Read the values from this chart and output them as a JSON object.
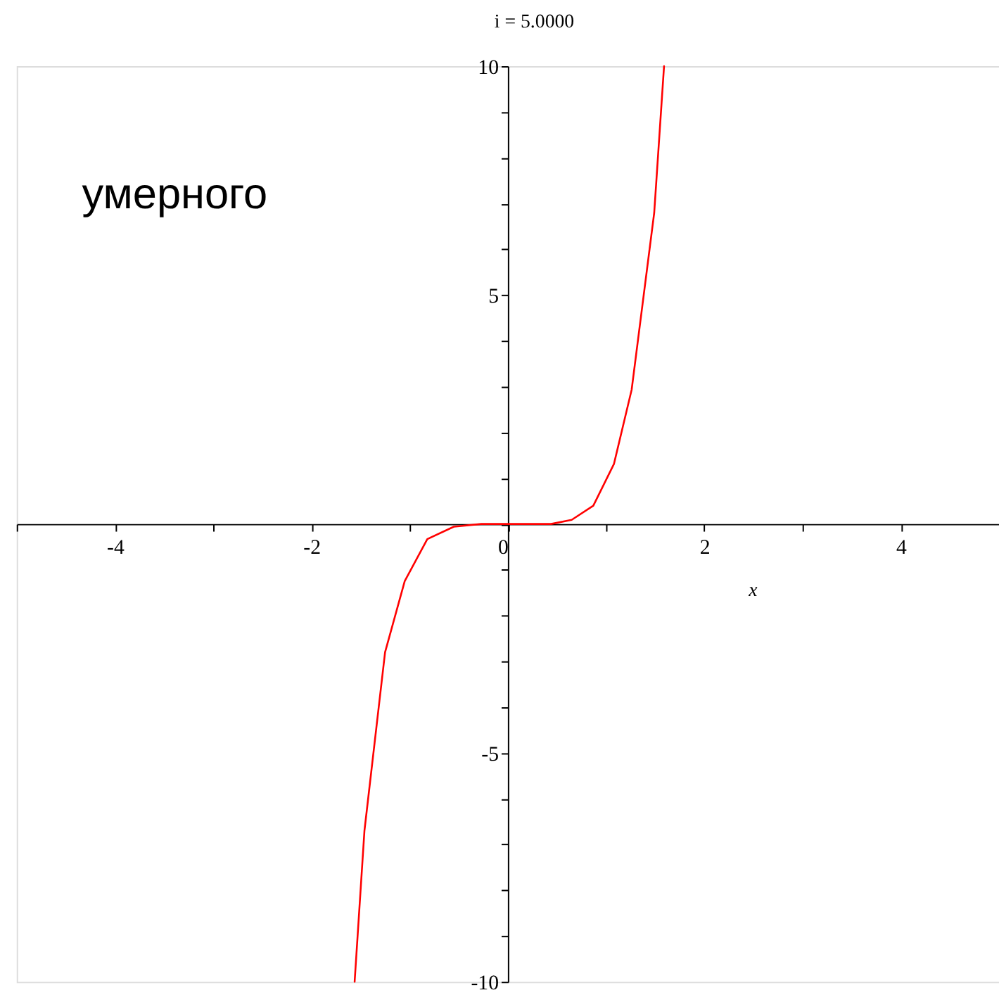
{
  "chart_data": {
    "type": "line",
    "title": "i = 5.0000",
    "xlabel": "x",
    "annotations": [
      "умерного"
    ],
    "xlim": [
      -5,
      5
    ],
    "ylim": [
      -10,
      10
    ],
    "xticks": [
      {
        "value": -5,
        "label": null
      },
      -4,
      {
        "value": -3,
        "label": null
      },
      -2,
      {
        "value": -1,
        "label": null
      },
      0,
      {
        "value": 1,
        "label": null
      },
      2,
      {
        "value": 3,
        "label": null
      },
      4,
      {
        "value": 5,
        "label": null
      }
    ],
    "yticks": [
      -10,
      {
        "value": -9,
        "label": null
      },
      {
        "value": -8,
        "label": null
      },
      {
        "value": -7,
        "label": null
      },
      {
        "value": -6,
        "label": null
      },
      -5,
      {
        "value": -4,
        "label": null
      },
      {
        "value": -3,
        "label": null
      },
      {
        "value": -2,
        "label": null
      },
      {
        "value": -1,
        "label": null
      },
      {
        "value": 0,
        "label": null
      },
      {
        "value": 1,
        "label": null
      },
      {
        "value": 2,
        "label": null
      },
      {
        "value": 3,
        "label": null
      },
      {
        "value": 4,
        "label": null
      },
      5,
      {
        "value": 6,
        "label": null
      },
      {
        "value": 7,
        "label": null
      },
      {
        "value": 8,
        "label": null
      },
      {
        "value": 9,
        "label": null
      },
      10
    ],
    "grid": false,
    "marker": "none",
    "line_style": "solid",
    "series": [
      {
        "color": "#ff0000",
        "x": [
          -1.56,
          -1.46,
          -1.25,
          -1.05,
          -0.82,
          -0.55,
          -0.27,
          0,
          0.44,
          0.65,
          0.87,
          1.08,
          1.26,
          1.49,
          1.59
        ],
        "values": [
          -10,
          -6.7,
          -2.8,
          -1.25,
          -0.33,
          -0.06,
          0,
          0,
          0,
          0.09,
          0.4,
          1.31,
          2.93,
          6.8,
          10
        ]
      }
    ]
  }
}
